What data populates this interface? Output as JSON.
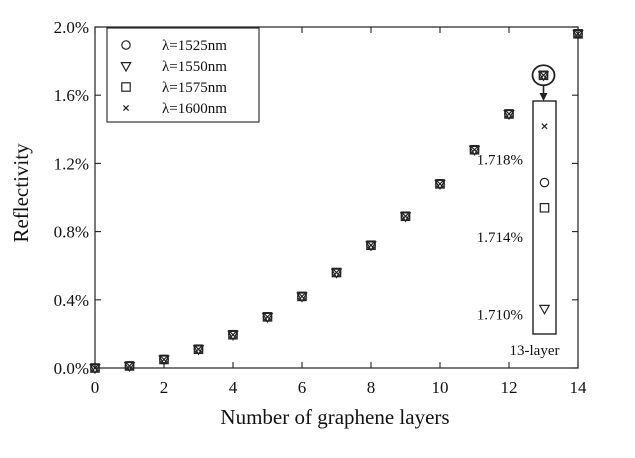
{
  "chart_data": {
    "type": "scatter",
    "xlabel": "Number of graphene layers",
    "ylabel": "Reflectivity",
    "xlim": [
      0,
      14
    ],
    "ylim": [
      0.0,
      2.0
    ],
    "x_ticks": [
      0,
      2,
      4,
      6,
      8,
      10,
      12,
      14
    ],
    "y_ticks": [
      0.0,
      0.4,
      0.8,
      1.2,
      1.6,
      2.0
    ],
    "y_tick_labels": [
      "0.0%",
      "0.4%",
      "0.8%",
      "1.2%",
      "1.6%",
      "2.0%"
    ],
    "y_unit": "%",
    "legend_position": "top-left",
    "x": [
      0,
      1,
      2,
      3,
      4,
      5,
      6,
      7,
      8,
      9,
      10,
      11,
      12,
      13,
      14
    ],
    "series": [
      {
        "name": "λ=1525nm",
        "marker": "circle",
        "values": [
          0.0,
          0.012,
          0.05,
          0.11,
          0.195,
          0.3,
          0.42,
          0.56,
          0.72,
          0.89,
          1.08,
          1.28,
          1.49,
          1.7168,
          1.96
        ]
      },
      {
        "name": "λ=1550nm",
        "marker": "triangle-down",
        "values": [
          0.0,
          0.012,
          0.05,
          0.11,
          0.195,
          0.3,
          0.42,
          0.56,
          0.72,
          0.89,
          1.08,
          1.28,
          1.49,
          1.7103,
          1.96
        ]
      },
      {
        "name": "λ=1575nm",
        "marker": "square",
        "values": [
          0.0,
          0.012,
          0.05,
          0.11,
          0.195,
          0.3,
          0.42,
          0.56,
          0.72,
          0.89,
          1.08,
          1.28,
          1.49,
          1.7155,
          1.96
        ]
      },
      {
        "name": "λ=1600nm",
        "marker": "x",
        "values": [
          0.0,
          0.012,
          0.05,
          0.11,
          0.195,
          0.3,
          0.42,
          0.56,
          0.72,
          0.89,
          1.08,
          1.28,
          1.49,
          1.7197,
          1.96
        ]
      }
    ],
    "inset": {
      "caption": "13-layer",
      "ylim": [
        1.709,
        1.721
      ],
      "y_ticks": [
        1.71,
        1.714,
        1.718
      ],
      "y_tick_labels": [
        "1.710%",
        "1.714%",
        "1.718%"
      ],
      "x": 13,
      "points": [
        {
          "series": "λ=1600nm",
          "marker": "x",
          "value": 1.7197
        },
        {
          "series": "λ=1525nm",
          "marker": "circle",
          "value": 1.7168
        },
        {
          "series": "λ=1575nm",
          "marker": "square",
          "value": 1.7155
        },
        {
          "series": "λ=1550nm",
          "marker": "triangle-down",
          "value": 1.7103
        }
      ]
    },
    "grid": false
  }
}
